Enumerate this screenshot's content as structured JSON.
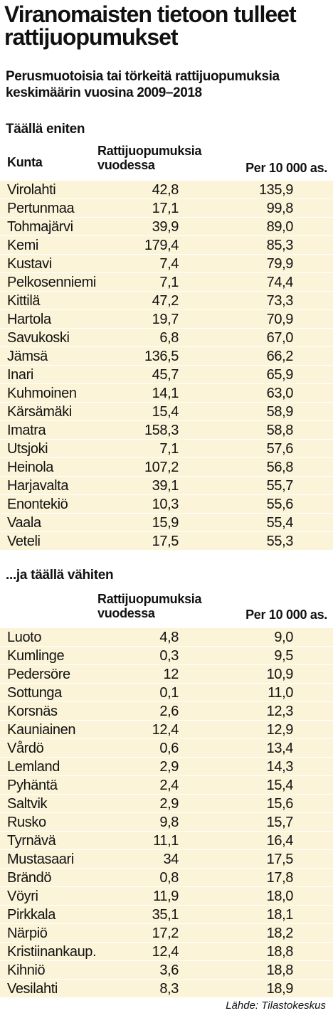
{
  "header": {
    "title": "Viranomaisten tietoon tulleet rattijuopumukset",
    "subtitle": "Perusmuotoisia tai törkeitä rattijuopumuksia keskimäärin vuosina 2009–2018"
  },
  "columns": {
    "kunta": "Kunta",
    "count": "Rattijuopumuksia vuodessa",
    "per": "Per 10 000 as."
  },
  "chart_data": [
    {
      "type": "table",
      "title": "Täällä eniten",
      "columns": [
        "Kunta",
        "Rattijuopumuksia vuodessa",
        "Per 10 000 as."
      ],
      "rows": [
        [
          "Virolahti",
          "42,8",
          "135,9"
        ],
        [
          "Pertunmaa",
          "17,1",
          "99,8"
        ],
        [
          "Tohmajärvi",
          "39,9",
          "89,0"
        ],
        [
          "Kemi",
          "179,4",
          "85,3"
        ],
        [
          "Kustavi",
          "7,4",
          "79,9"
        ],
        [
          "Pelkosenniemi",
          "7,1",
          "74,4"
        ],
        [
          "Kittilä",
          "47,2",
          "73,3"
        ],
        [
          "Hartola",
          "19,7",
          "70,9"
        ],
        [
          "Savukoski",
          "6,8",
          "67,0"
        ],
        [
          "Jämsä",
          "136,5",
          "66,2"
        ],
        [
          "Inari",
          "45,7",
          "65,9"
        ],
        [
          "Kuhmoinen",
          "14,1",
          "63,0"
        ],
        [
          "Kärsämäki",
          "15,4",
          "58,9"
        ],
        [
          "Imatra",
          "158,3",
          "58,8"
        ],
        [
          "Utsjoki",
          "7,1",
          "57,6"
        ],
        [
          "Heinola",
          "107,2",
          "56,8"
        ],
        [
          "Harjavalta",
          "39,1",
          "55,7"
        ],
        [
          "Enontekiö",
          "10,3",
          "55,6"
        ],
        [
          "Vaala",
          "15,9",
          "55,4"
        ],
        [
          "Veteli",
          "17,5",
          "55,3"
        ]
      ]
    },
    {
      "type": "table",
      "title": "...ja täällä vähiten",
      "columns": [
        "",
        "Rattijuopumuksia vuodessa",
        "Per 10 000 as."
      ],
      "rows": [
        [
          "Luoto",
          "4,8",
          "9,0"
        ],
        [
          "Kumlinge",
          "0,3",
          "9,5"
        ],
        [
          "Pedersöre",
          "12",
          "10,9"
        ],
        [
          "Sottunga",
          "0,1",
          "11,0"
        ],
        [
          "Korsnäs",
          "2,6",
          "12,3"
        ],
        [
          "Kauniainen",
          "12,4",
          "12,9"
        ],
        [
          "Vårdö",
          "0,6",
          "13,4"
        ],
        [
          "Lemland",
          "2,9",
          "14,3"
        ],
        [
          "Pyhäntä",
          "2,4",
          "15,4"
        ],
        [
          "Saltvik",
          "2,9",
          "15,6"
        ],
        [
          "Rusko",
          "9,8",
          "15,7"
        ],
        [
          "Tyrnävä",
          "11,1",
          "16,4"
        ],
        [
          "Mustasaari",
          "34",
          "17,5"
        ],
        [
          "Brändö",
          "0,8",
          "17,8"
        ],
        [
          "Vöyri",
          "11,9",
          "18,0"
        ],
        [
          "Pirkkala",
          "35,1",
          "18,1"
        ],
        [
          "Närpiö",
          "17,2",
          "18,2"
        ],
        [
          "Kristiinankaup.",
          "12,4",
          "18,8"
        ],
        [
          "Kihniö",
          "3,6",
          "18,8"
        ],
        [
          "Vesilahti",
          "8,3",
          "18,9"
        ]
      ]
    }
  ],
  "source": "Lähde: Tilastokeskus",
  "colors": {
    "row_background": "#fbf4d9",
    "text": "#111111",
    "background": "#ffffff"
  }
}
